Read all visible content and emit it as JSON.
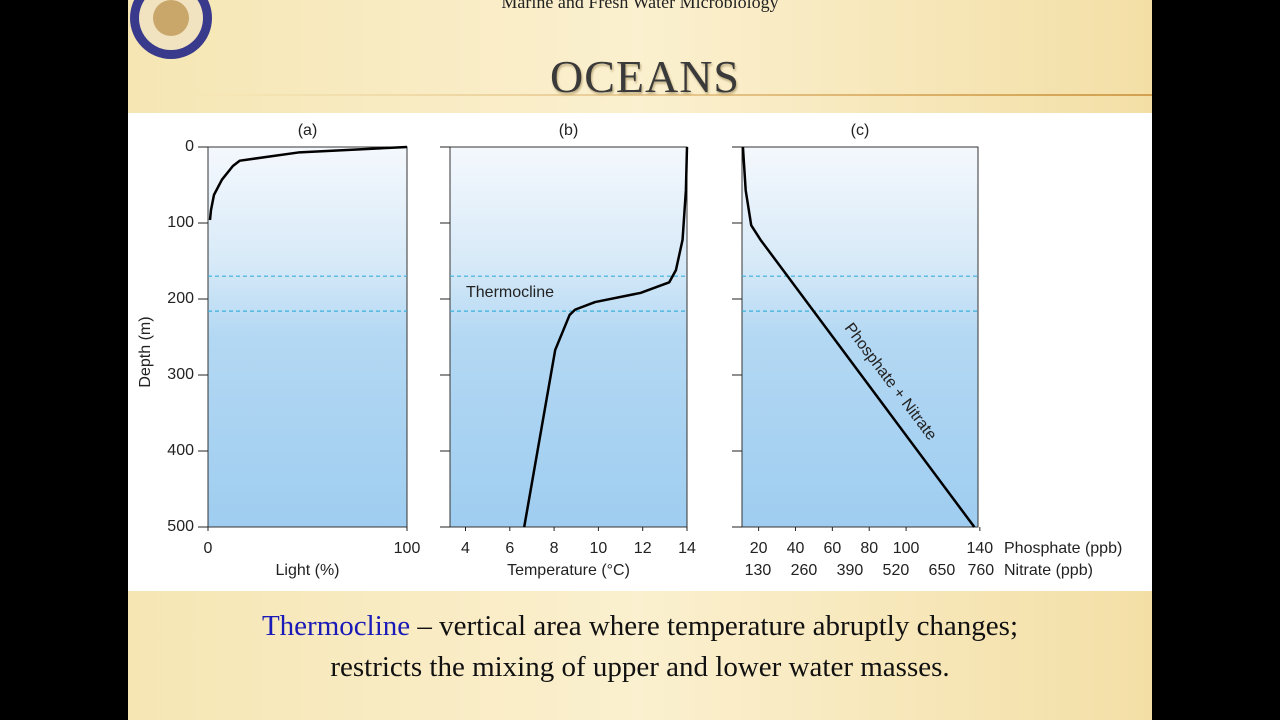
{
  "header": "Marine and Fresh Water Microbiology",
  "title": "OCEANS",
  "chart_data": [
    {
      "type": "line",
      "title": "(a)",
      "xlabel": "Light (%)",
      "ylabel": "Depth (m)",
      "xlim": [
        0,
        100
      ],
      "xticks": [
        0,
        100
      ],
      "ylim": [
        0,
        500
      ],
      "yticks": [
        0,
        100,
        200,
        300,
        400,
        500
      ],
      "ytick_labels": true,
      "thermocline": [
        170,
        216
      ],
      "color": "#000000",
      "x": [
        100,
        46,
        16,
        12.5,
        7,
        3,
        1.5,
        1
      ],
      "values": [
        0,
        7,
        18,
        25,
        43,
        63,
        83,
        96
      ]
    },
    {
      "type": "line",
      "title": "(b)",
      "xlabel": "Temperature (°C)",
      "annotation": "Thermocline",
      "xlim": [
        3.3,
        14
      ],
      "xticks": [
        4,
        6,
        8,
        10,
        12,
        14
      ],
      "ylim": [
        0,
        500
      ],
      "yticks": [
        0,
        100,
        200,
        300,
        400,
        500
      ],
      "ytick_labels": false,
      "thermocline": [
        170,
        216
      ],
      "color": "#000000",
      "x": [
        14,
        13.95,
        13.8,
        13.5,
        13.2,
        11.9,
        9.85,
        8.95,
        8.7,
        8.05,
        6.65
      ],
      "values": [
        0,
        57,
        122,
        162,
        178,
        192,
        204,
        214,
        221,
        267,
        500
      ]
    },
    {
      "type": "line",
      "title": "(c)",
      "xlabel": "Phosphate (ppb)",
      "x2label": "Nitrate (ppb)",
      "annotation": "Phosphate + Nitrate",
      "xlim": [
        11,
        139
      ],
      "xticks": [
        20,
        40,
        60,
        80,
        100,
        140
      ],
      "x2lim": [
        85,
        752
      ],
      "x2ticks": [
        130,
        260,
        390,
        520,
        650,
        760
      ],
      "ylim": [
        0,
        500
      ],
      "yticks": [
        0,
        100,
        200,
        300,
        400,
        500
      ],
      "ytick_labels": false,
      "thermocline": [
        170,
        216
      ],
      "color": "#000000",
      "x": [
        11.5,
        13,
        16,
        21,
        137
      ],
      "values": [
        0,
        57,
        103,
        122,
        500
      ]
    }
  ],
  "caption": {
    "term": "Thermocline",
    "line1": "– vertical area where temperature abruptly changes;",
    "line2": "restricts the mixing of upper and lower water masses."
  }
}
